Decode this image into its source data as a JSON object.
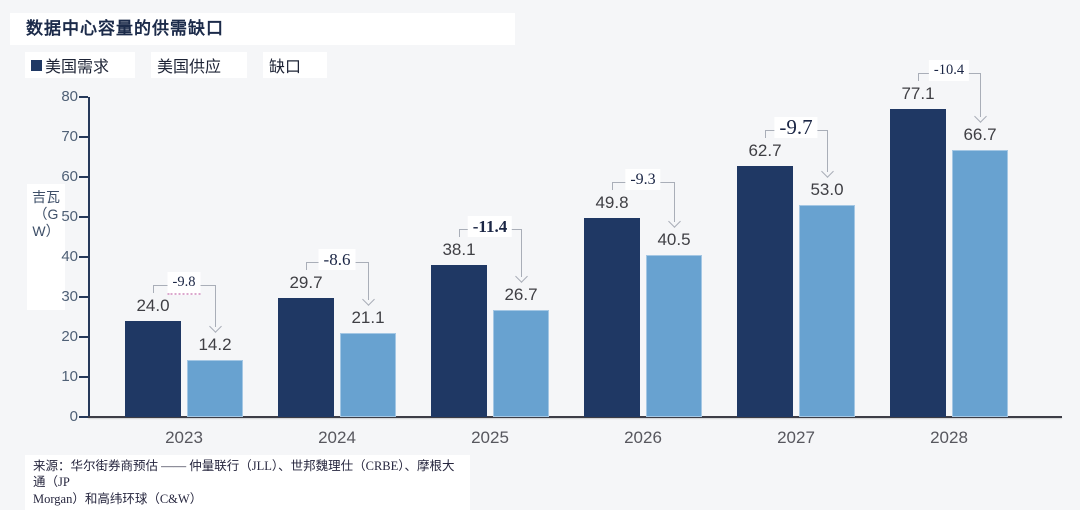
{
  "title": "数据中心容量的供需缺口",
  "legend": {
    "items": [
      {
        "label": "美国需求",
        "swatch": "#1f3864"
      },
      {
        "label": "美国供应",
        "swatch": null
      },
      {
        "label": "缺口",
        "swatch": null
      }
    ]
  },
  "y_axis": {
    "unit_text": "吉瓦\n（G\nW）",
    "ticks": [
      0,
      10,
      20,
      30,
      40,
      50,
      60,
      70,
      80
    ]
  },
  "chart_data": {
    "type": "bar",
    "title": "数据中心容量的供需缺口",
    "categories": [
      "2023",
      "2024",
      "2025",
      "2026",
      "2027",
      "2028"
    ],
    "series": [
      {
        "name": "美国需求",
        "values": [
          24.0,
          29.7,
          38.1,
          49.8,
          62.7,
          77.1
        ]
      },
      {
        "name": "美国供应",
        "values": [
          14.2,
          21.1,
          26.7,
          40.5,
          53.0,
          66.7
        ]
      },
      {
        "name": "缺口",
        "values": [
          -9.8,
          -8.6,
          -11.4,
          -9.3,
          -9.7,
          -10.4
        ]
      }
    ],
    "ylabel": "吉瓦（GW）",
    "xlabel": "",
    "ylim": [
      0,
      80
    ],
    "grid": false,
    "legend_position": "top-left"
  },
  "source": {
    "text": "来源：华尔街券商预估 —— 仲量联行（JLL）、世邦魏理仕（CRBE）、摩根大通（JP\nMorgan）和高纬环球（C&W）"
  },
  "colors": {
    "demand_bar": "#1f3864",
    "supply_bar": "#68a2d0",
    "supply_border": "#a4c7e4",
    "background": "#f5f6f8",
    "bracket": "#a9aeb8",
    "axis": "#26395a",
    "baseline": "#3d3d46",
    "tick_label": "#4f6076",
    "value_label": "#3f3f44",
    "gap_label": "#1b2645"
  }
}
